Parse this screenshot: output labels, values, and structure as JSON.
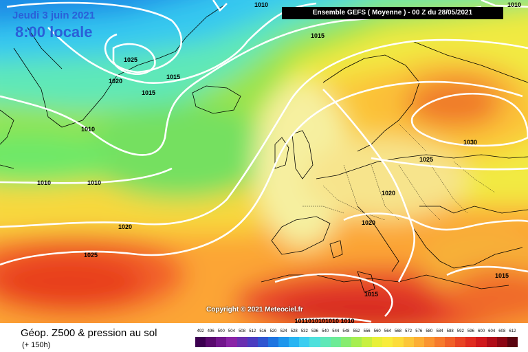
{
  "header": {
    "date": "Jeudi 3 juin 2021",
    "time": "8:00 locale",
    "model": "Ensemble GEFS  ( Moyenne )  -  00 Z du 28/05/2021"
  },
  "copyright": "Copyright © 2021 Meteociel.fr",
  "footer": {
    "title": "Géop. Z500 & pression au sol",
    "subtitle": "(+ 150h)"
  },
  "isobar_labels": [
    {
      "id": "top-1010-a",
      "text": "1010"
    },
    {
      "id": "top-1010-b",
      "text": "1010"
    },
    {
      "id": "label-1015-north",
      "text": "1015"
    },
    {
      "id": "label-1025-greenland",
      "text": "1025"
    },
    {
      "id": "label-1020-greenland",
      "text": "1020"
    },
    {
      "id": "label-1015-a",
      "text": "1015"
    },
    {
      "id": "label-1015-b",
      "text": "1015"
    },
    {
      "id": "label-1010-labrador",
      "text": "1010"
    },
    {
      "id": "label-1010-west-a",
      "text": "1010"
    },
    {
      "id": "label-1010-west-b",
      "text": "1010"
    },
    {
      "id": "label-1020-atlantic",
      "text": "1020"
    },
    {
      "id": "label-1025-azores",
      "text": "1025"
    },
    {
      "id": "label-1030-russia",
      "text": "1030"
    },
    {
      "id": "label-1025-east",
      "text": "1025"
    },
    {
      "id": "label-1020-europe",
      "text": "1020"
    },
    {
      "id": "label-1020-alps",
      "text": "1020"
    },
    {
      "id": "label-1015-med",
      "text": "1015"
    },
    {
      "id": "label-1015-se",
      "text": "1015"
    },
    {
      "id": "label-1010-africa",
      "text": "1011010101010  1010"
    }
  ],
  "legend": {
    "labels": [
      "492",
      "496",
      "500",
      "504",
      "508",
      "512",
      "516",
      "520",
      "524",
      "528",
      "532",
      "536",
      "540",
      "544",
      "548",
      "552",
      "556",
      "560",
      "564",
      "568",
      "572",
      "576",
      "580",
      "584",
      "588",
      "592",
      "596",
      "600",
      "604",
      "608",
      "612"
    ],
    "colors": [
      "#3c0050",
      "#5a0a6e",
      "#72168c",
      "#8a24a6",
      "#6a2fb0",
      "#4b3cc0",
      "#2f55d0",
      "#1e74e0",
      "#1e96ec",
      "#28b4f2",
      "#3ccdf0",
      "#4ee0dc",
      "#5ee8b8",
      "#6ceb96",
      "#86ec70",
      "#a6ee50",
      "#c8f040",
      "#e8f038",
      "#f8ec3c",
      "#fcdc3a",
      "#fcc638",
      "#fcae34",
      "#fa9430",
      "#f67a2c",
      "#f06028",
      "#e84424",
      "#e02c20",
      "#d0181c",
      "#b00c18",
      "#8c0614",
      "#5a0410"
    ]
  },
  "palette": {
    "header_text": "#2a5fd8",
    "isobar": "#ffffff",
    "coast": "#000000"
  }
}
